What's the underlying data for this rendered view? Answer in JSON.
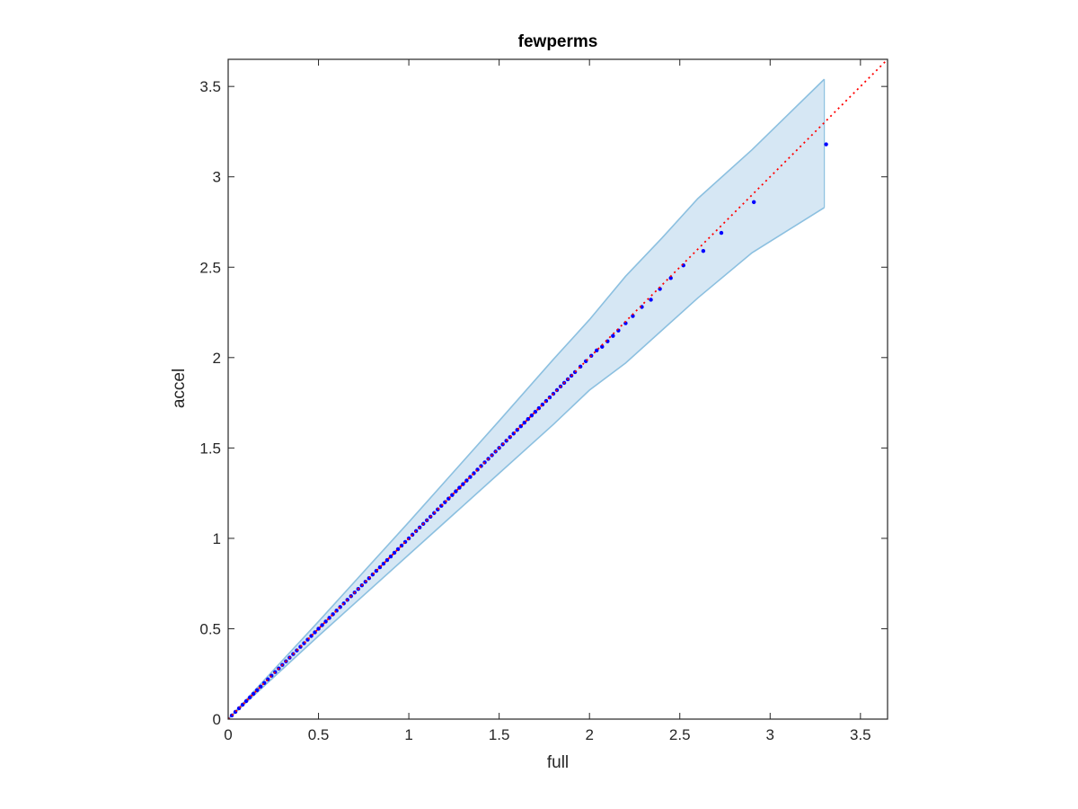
{
  "chart_data": {
    "type": "scatter",
    "title": "fewperms",
    "xlabel": "full",
    "ylabel": "accel",
    "xlim": [
      0,
      3.65
    ],
    "ylim": [
      0,
      3.65
    ],
    "xticks": [
      0,
      0.5,
      1,
      1.5,
      2,
      2.5,
      3,
      3.5
    ],
    "yticks": [
      0,
      0.5,
      1,
      1.5,
      2,
      2.5,
      3,
      3.5
    ],
    "xtick_labels": [
      "0",
      "0.5",
      "1",
      "1.5",
      "2",
      "2.5",
      "3",
      "3.5"
    ],
    "ytick_labels": [
      "0",
      "0.5",
      "1",
      "1.5",
      "2",
      "2.5",
      "3",
      "3.5"
    ],
    "grid": false,
    "box": true,
    "reference_line": {
      "x": [
        0,
        3.65
      ],
      "y": [
        0,
        3.65
      ],
      "style": "dotted",
      "color": "#ff0000"
    },
    "band": {
      "color_fill": "#d6e7f4",
      "color_edge": "#8cc0e0",
      "upper": {
        "x": [
          0,
          0.5,
          1.0,
          1.5,
          1.8,
          2.0,
          2.2,
          2.4,
          2.6,
          2.9,
          3.3
        ],
        "y": [
          0,
          0.54,
          1.09,
          1.65,
          1.99,
          2.21,
          2.45,
          2.66,
          2.88,
          3.15,
          3.54
        ]
      },
      "lower": {
        "x": [
          0,
          0.5,
          1.0,
          1.5,
          1.8,
          2.0,
          2.2,
          2.4,
          2.6,
          2.9,
          3.3
        ],
        "y": [
          0,
          0.46,
          0.91,
          1.36,
          1.63,
          1.82,
          1.97,
          2.15,
          2.33,
          2.58,
          2.83
        ]
      }
    },
    "series": [
      {
        "color": "#0000ff",
        "marker": "dot",
        "dense_diagonal": {
          "from": 0,
          "to": 1.9,
          "step": 0.02
        },
        "x": [
          1.92,
          1.95,
          1.98,
          2.01,
          2.04,
          2.07,
          2.1,
          2.13,
          2.16,
          2.2,
          2.24,
          2.29,
          2.34,
          2.39,
          2.45,
          2.52,
          2.63,
          2.73,
          2.91,
          3.31
        ],
        "y": [
          1.92,
          1.95,
          1.98,
          2.01,
          2.04,
          2.06,
          2.09,
          2.12,
          2.15,
          2.19,
          2.23,
          2.28,
          2.32,
          2.38,
          2.44,
          2.51,
          2.59,
          2.69,
          2.86,
          3.18
        ]
      }
    ]
  }
}
